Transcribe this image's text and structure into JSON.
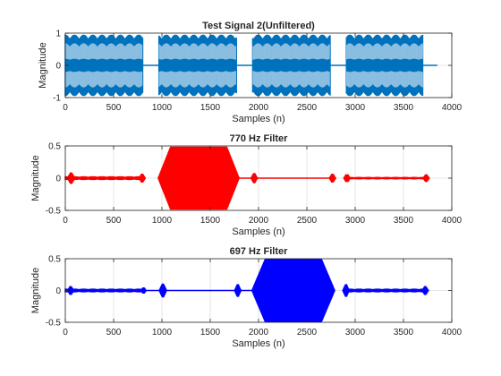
{
  "chart_data": [
    {
      "type": "line",
      "title": "Test Signal 2(Unfiltered)",
      "xlabel": "Samples (n)",
      "ylabel": "Magnitude",
      "xlim": [
        0,
        4000
      ],
      "ylim": [
        -1,
        1
      ],
      "xticks": [
        0,
        500,
        1000,
        1500,
        2000,
        2500,
        3000,
        3500,
        4000
      ],
      "yticks": [
        -1,
        0,
        1
      ],
      "xtick_labels": [
        "0",
        "500",
        "1000",
        "1500",
        "2000",
        "2500",
        "3000",
        "3500",
        "4000"
      ],
      "ytick_labels": [
        "-1",
        "0",
        "1"
      ],
      "grid": true,
      "color": "#0072bd",
      "bursts": [
        {
          "start": 0,
          "end": 800,
          "amplitude": 0.95,
          "ramp": 0,
          "modulation": 0.15,
          "inner": 0.72
        },
        {
          "start": 970,
          "end": 1770,
          "amplitude": 0.95,
          "ramp": 0,
          "modulation": 0.15,
          "inner": 0.72
        },
        {
          "start": 1940,
          "end": 2740,
          "amplitude": 0.95,
          "ramp": 0,
          "modulation": 0.15,
          "inner": 0.72
        },
        {
          "start": 2910,
          "end": 3700,
          "amplitude": 0.95,
          "ramp": 0,
          "modulation": 0.15,
          "inner": 0.72
        }
      ],
      "baseline": [
        {
          "start": 800,
          "end": 970
        },
        {
          "start": 1770,
          "end": 1940
        },
        {
          "start": 2740,
          "end": 2910
        },
        {
          "start": 3700,
          "end": 3850
        }
      ]
    },
    {
      "type": "line",
      "title": "770 Hz Filter",
      "xlabel": "Samples (n)",
      "ylabel": "Magnitude",
      "xlim": [
        0,
        4000
      ],
      "ylim": [
        -0.5,
        0.5
      ],
      "xticks": [
        0,
        500,
        1000,
        1500,
        2000,
        2500,
        3000,
        3500,
        4000
      ],
      "yticks": [
        -0.5,
        0,
        0.5
      ],
      "xtick_labels": [
        "0",
        "500",
        "1000",
        "1500",
        "2000",
        "2500",
        "3000",
        "3500",
        "4000"
      ],
      "ytick_labels": [
        "-0.5",
        "0",
        "0.5"
      ],
      "grid": true,
      "color": "#ff0000",
      "bursts": [
        {
          "start": 0,
          "end": 800,
          "amplitude": 0.03,
          "ramp": 0,
          "modulation": 0.3,
          "inner": 0
        },
        {
          "start": 20,
          "end": 100,
          "amplitude": 0.09,
          "ramp": 35,
          "modulation": 0,
          "inner": 0
        },
        {
          "start": 760,
          "end": 830,
          "amplitude": 0.07,
          "ramp": 30,
          "modulation": 0,
          "inner": 0
        },
        {
          "start": 960,
          "end": 1800,
          "amplitude": 0.49,
          "ramp": 130,
          "modulation": 0,
          "inner": 0
        },
        {
          "start": 1920,
          "end": 1990,
          "amplitude": 0.08,
          "ramp": 30,
          "modulation": 0,
          "inner": 0
        },
        {
          "start": 1990,
          "end": 2740,
          "amplitude": 0.01,
          "ramp": 0,
          "modulation": 0,
          "inner": 0
        },
        {
          "start": 2730,
          "end": 2800,
          "amplitude": 0.07,
          "ramp": 30,
          "modulation": 0,
          "inner": 0
        },
        {
          "start": 2880,
          "end": 2950,
          "amplitude": 0.06,
          "ramp": 25,
          "modulation": 0,
          "inner": 0
        },
        {
          "start": 2950,
          "end": 3700,
          "amplitude": 0.02,
          "ramp": 0,
          "modulation": 0.3,
          "inner": 0
        },
        {
          "start": 3700,
          "end": 3770,
          "amplitude": 0.06,
          "ramp": 30,
          "modulation": 0,
          "inner": 0
        }
      ],
      "baseline": [
        {
          "start": 1800,
          "end": 1920
        }
      ]
    },
    {
      "type": "line",
      "title": "697 Hz Filter",
      "xlabel": "Samples (n)",
      "ylabel": "Magnitude",
      "xlim": [
        0,
        4000
      ],
      "ylim": [
        -0.5,
        0.5
      ],
      "xticks": [
        0,
        500,
        1000,
        1500,
        2000,
        2500,
        3000,
        3500,
        4000
      ],
      "yticks": [
        -0.5,
        0,
        0.5
      ],
      "xtick_labels": [
        "0",
        "500",
        "1000",
        "1500",
        "2000",
        "2500",
        "3000",
        "3500",
        "4000"
      ],
      "ytick_labels": [
        "-0.5",
        "0",
        "0.5"
      ],
      "grid": true,
      "color": "#0000ff",
      "bursts": [
        {
          "start": 0,
          "end": 800,
          "amplitude": 0.03,
          "ramp": 0,
          "modulation": 0.3,
          "inner": 0
        },
        {
          "start": 20,
          "end": 90,
          "amplitude": 0.07,
          "ramp": 30,
          "modulation": 0,
          "inner": 0
        },
        {
          "start": 780,
          "end": 840,
          "amplitude": 0.05,
          "ramp": 25,
          "modulation": 0,
          "inner": 0
        },
        {
          "start": 970,
          "end": 1050,
          "amplitude": 0.11,
          "ramp": 35,
          "modulation": 0,
          "inner": 0
        },
        {
          "start": 1050,
          "end": 1760,
          "amplitude": 0.01,
          "ramp": 0,
          "modulation": 0,
          "inner": 0
        },
        {
          "start": 1750,
          "end": 1820,
          "amplitude": 0.1,
          "ramp": 30,
          "modulation": 0,
          "inner": 0
        },
        {
          "start": 1930,
          "end": 2790,
          "amplitude": 0.5,
          "ramp": 140,
          "modulation": 0,
          "inner": 0
        },
        {
          "start": 2870,
          "end": 2940,
          "amplitude": 0.1,
          "ramp": 30,
          "modulation": 0,
          "inner": 0
        },
        {
          "start": 2940,
          "end": 3700,
          "amplitude": 0.03,
          "ramp": 0,
          "modulation": 0.3,
          "inner": 0
        },
        {
          "start": 3690,
          "end": 3760,
          "amplitude": 0.07,
          "ramp": 30,
          "modulation": 0,
          "inner": 0
        }
      ],
      "baseline": [
        {
          "start": 840,
          "end": 970
        },
        {
          "start": 1820,
          "end": 1930
        }
      ]
    }
  ]
}
